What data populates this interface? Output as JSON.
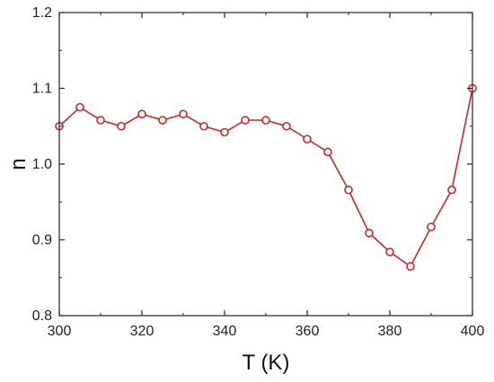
{
  "chart_data": {
    "type": "line",
    "title": "",
    "xlabel": "T (K)",
    "ylabel": "n",
    "xlim": [
      300,
      400
    ],
    "ylim": [
      0.8,
      1.2
    ],
    "xticks": [
      300,
      320,
      340,
      360,
      380,
      400
    ],
    "yticks": [
      0.8,
      0.9,
      1.0,
      1.1,
      1.2
    ],
    "xtick_labels": [
      "300",
      "320",
      "340",
      "360",
      "380",
      "400"
    ],
    "ytick_labels": [
      "0.8",
      "0.9",
      "1.0",
      "1.1",
      "1.2"
    ],
    "grid": false,
    "legend": "none",
    "series_color": "#c62828",
    "series": [
      {
        "x": [
          300,
          305,
          310,
          315,
          320,
          325,
          330,
          335,
          340,
          345,
          350,
          355,
          360,
          365,
          370,
          375,
          380,
          385,
          390,
          395,
          400
        ],
        "y": [
          1.05,
          1.075,
          1.058,
          1.05,
          1.066,
          1.058,
          1.066,
          1.05,
          1.042,
          1.058,
          1.058,
          1.05,
          1.033,
          1.016,
          0.966,
          0.909,
          0.884,
          0.865,
          0.917,
          0.966,
          1.1
        ]
      }
    ]
  }
}
